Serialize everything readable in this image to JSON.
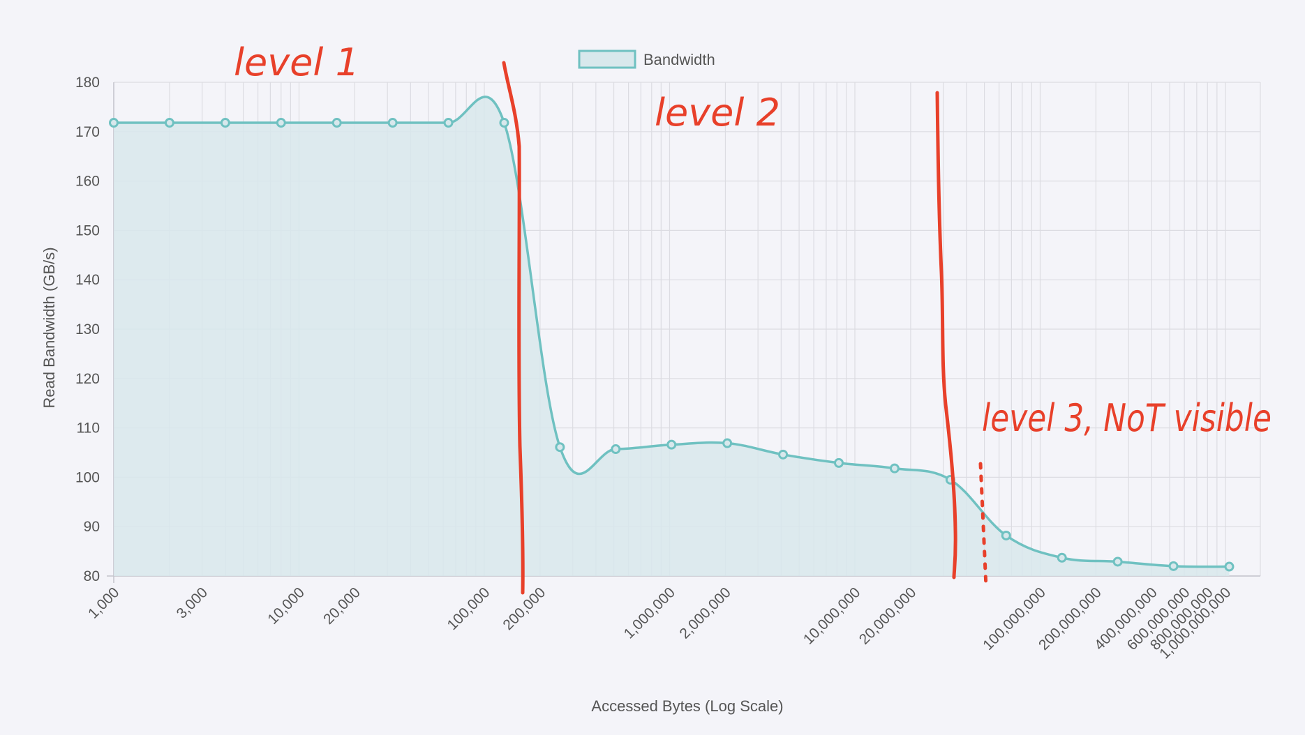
{
  "chart_data": {
    "type": "area",
    "legend": {
      "label": "Bandwidth",
      "position": "top-center"
    },
    "xlabel": "Accessed Bytes (Log Scale)",
    "ylabel": "Read Bandwidth (GB/s)",
    "x_scale": "log",
    "ylim": [
      80,
      180
    ],
    "y_ticks": [
      80,
      90,
      100,
      110,
      120,
      130,
      140,
      150,
      160,
      170,
      180
    ],
    "x_tick_labels": [
      {
        "value": 1000,
        "label": "1,000"
      },
      {
        "value": 3000,
        "label": "3,000"
      },
      {
        "value": 10000,
        "label": "10,000"
      },
      {
        "value": 20000,
        "label": "20,000"
      },
      {
        "value": 100000,
        "label": "100,000"
      },
      {
        "value": 200000,
        "label": "200,000"
      },
      {
        "value": 1000000,
        "label": "1,000,000"
      },
      {
        "value": 2000000,
        "label": "2,000,000"
      },
      {
        "value": 10000000,
        "label": "10,000,000"
      },
      {
        "value": 20000000,
        "label": "20,000,000"
      },
      {
        "value": 100000000,
        "label": "100,000,000"
      },
      {
        "value": 200000000,
        "label": "200,000,000"
      },
      {
        "value": 400000000,
        "label": "400,000,000"
      },
      {
        "value": 600000000,
        "label": "600,000,000"
      },
      {
        "value": 800000000,
        "label": "800,000,000"
      },
      {
        "value": 1000000000,
        "label": "1,000,000,000"
      }
    ],
    "grid": true,
    "colors": {
      "line": "#6fc1c1",
      "fill": "#d8e8ec",
      "grid": "#dcdce2",
      "annotation": "#e8402a"
    },
    "series": [
      {
        "name": "Bandwidth",
        "x": [
          1000,
          2000,
          4000,
          8000,
          16000,
          32000,
          64000,
          128000,
          256000,
          512000,
          1024000,
          2048000,
          4096000,
          8192000,
          16384000,
          32768000,
          65536000,
          131072000,
          262144000,
          524288000,
          1048576000
        ],
        "y": [
          171.8,
          171.8,
          171.8,
          171.8,
          171.8,
          171.8,
          171.8,
          171.8,
          106.1,
          105.7,
          106.6,
          106.9,
          104.6,
          102.9,
          101.8,
          99.5,
          88.2,
          83.7,
          82.9,
          82.0,
          81.9
        ]
      }
    ],
    "annotations": [
      {
        "text": "level 1"
      },
      {
        "text": "level 2"
      },
      {
        "text": "level 3, NoT visible"
      }
    ]
  }
}
